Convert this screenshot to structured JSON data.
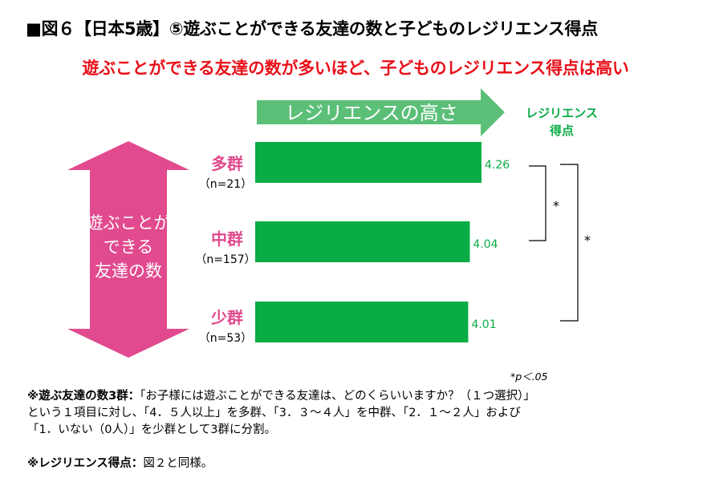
{
  "title": "■図６【日本5歳】⑤遊ぶことができる友達の数と子どものレジリエンス得点",
  "subtitle": "遊ぶことができる友達の数が多いほど、子どものレジリエンス得点は高い",
  "arrow_label": "レジリエンスの高さ",
  "y_arrow_label": [
    "遊ぶことが",
    "できる",
    "友達の数"
  ],
  "colors": {
    "bar": "#0aac45",
    "group_label": "#e04a8c",
    "y_arrow": "#e14a8e",
    "x_arrow": "#5bbf78",
    "value_text": "#0aac45",
    "title_red": "#e8111a"
  },
  "chart_data": {
    "type": "bar",
    "orientation": "horizontal",
    "categories": [
      "多群",
      "中群",
      "少群"
    ],
    "n_labels": [
      "（n=21）",
      "（n=157）",
      "（n=53）"
    ],
    "values": [
      4.26,
      4.04,
      4.01
    ],
    "value_labels": [
      "4.26",
      "4.04",
      "4.01"
    ],
    "value_axis_title": [
      "レジリエンス",
      "得点"
    ],
    "significance_marks": [
      "*",
      "*"
    ],
    "significance_note": "*p＜.05"
  },
  "notes": {
    "line1_label": "※遊ぶ友達の数3群：",
    "line1_text": "「お子様には遊ぶことができる友達は、どのくらいいますか？（１つ選択）」",
    "line2": "という１項目に対し、「4．５人以上」を多群、「3．３〜４人」を中群、「2．１〜２人」および",
    "line3": "「1．いない（0人）」を少群として3群に分割。",
    "line4_label": "※レジリエンス得点：",
    "line4_text": "図２と同様。"
  }
}
